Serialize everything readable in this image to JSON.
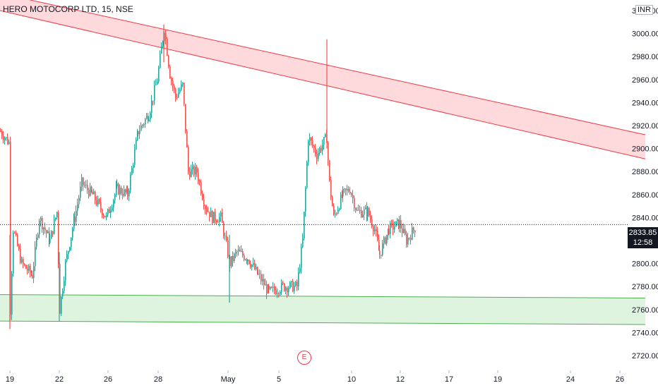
{
  "header": {
    "title": "HERO MOTOCORP LTD, 15, NSE",
    "currency": "INR"
  },
  "price_tag": {
    "price": "2833.85",
    "countdown": "12:58"
  },
  "earnings_marker": "E",
  "colors": {
    "up": "#26a69a",
    "down": "#ef5350",
    "resistance_fill": "#ffcdd2",
    "resistance_line": "#f23645",
    "support_fill": "#d4f0d4",
    "support_line": "#4caf50"
  },
  "chart_data": {
    "type": "candlestick",
    "title": "HERO MOTOCORP LTD, 15, NSE",
    "ylim": [
      2710,
      3040
    ],
    "y_ticks": [
      2720,
      2740,
      2760,
      2780,
      2800,
      2820,
      2840,
      2860,
      2880,
      2900,
      2920,
      2940,
      2960,
      2980,
      3000,
      3020
    ],
    "y_tick_labels": [
      "2720.00",
      "2740.00",
      "2760.00",
      "2780.00",
      "2800.00",
      "2820.00",
      "2840.00",
      "2860.00",
      "2880.00",
      "2900.00",
      "2920.00",
      "2940.00",
      "2960.00",
      "2980.00",
      "3000.00",
      "3020.00"
    ],
    "x_tick_labels": [
      "19",
      "22",
      "26",
      "28",
      "May",
      "5",
      "10",
      "12",
      "17",
      "19",
      "24",
      "26"
    ],
    "last_price": 2833.85,
    "price_path": [
      {
        "x": 0,
        "y": 2915
      },
      {
        "x": 12,
        "y": 2905
      },
      {
        "x": 14,
        "y": 2760
      },
      {
        "x": 18,
        "y": 2830
      },
      {
        "x": 30,
        "y": 2800
      },
      {
        "x": 45,
        "y": 2790
      },
      {
        "x": 55,
        "y": 2840
      },
      {
        "x": 70,
        "y": 2820
      },
      {
        "x": 80,
        "y": 2845
      },
      {
        "x": 84,
        "y": 2760
      },
      {
        "x": 92,
        "y": 2800
      },
      {
        "x": 105,
        "y": 2840
      },
      {
        "x": 115,
        "y": 2870
      },
      {
        "x": 130,
        "y": 2860
      },
      {
        "x": 150,
        "y": 2840
      },
      {
        "x": 165,
        "y": 2865
      },
      {
        "x": 180,
        "y": 2860
      },
      {
        "x": 195,
        "y": 2915
      },
      {
        "x": 210,
        "y": 2930
      },
      {
        "x": 222,
        "y": 2960
      },
      {
        "x": 232,
        "y": 3005
      },
      {
        "x": 240,
        "y": 2965
      },
      {
        "x": 248,
        "y": 2945
      },
      {
        "x": 258,
        "y": 2955
      },
      {
        "x": 266,
        "y": 2880
      },
      {
        "x": 278,
        "y": 2880
      },
      {
        "x": 290,
        "y": 2850
      },
      {
        "x": 300,
        "y": 2840
      },
      {
        "x": 312,
        "y": 2840
      },
      {
        "x": 325,
        "y": 2800
      },
      {
        "x": 335,
        "y": 2810
      },
      {
        "x": 350,
        "y": 2805
      },
      {
        "x": 365,
        "y": 2790
      },
      {
        "x": 380,
        "y": 2775
      },
      {
        "x": 400,
        "y": 2780
      },
      {
        "x": 420,
        "y": 2780
      },
      {
        "x": 428,
        "y": 2820
      },
      {
        "x": 436,
        "y": 2910
      },
      {
        "x": 448,
        "y": 2895
      },
      {
        "x": 462,
        "y": 2910
      },
      {
        "x": 466,
        "y": 2870
      },
      {
        "x": 472,
        "y": 2840
      },
      {
        "x": 485,
        "y": 2860
      },
      {
        "x": 495,
        "y": 2865
      },
      {
        "x": 505,
        "y": 2845
      },
      {
        "x": 520,
        "y": 2845
      },
      {
        "x": 530,
        "y": 2830
      },
      {
        "x": 537,
        "y": 2808
      },
      {
        "x": 550,
        "y": 2830
      },
      {
        "x": 565,
        "y": 2835
      },
      {
        "x": 575,
        "y": 2820
      },
      {
        "x": 588,
        "y": 2832
      }
    ],
    "resistance_zone": {
      "upper": [
        {
          "x": 0,
          "y": 3035
        },
        {
          "x": 914,
          "y": 2912
        }
      ],
      "lower": [
        {
          "x": 0,
          "y": 3020
        },
        {
          "x": 914,
          "y": 2891
        }
      ]
    },
    "support_zone": {
      "upper": [
        {
          "x": 0,
          "y": 2773
        },
        {
          "x": 914,
          "y": 2770
        }
      ],
      "lower": [
        {
          "x": 0,
          "y": 2750
        },
        {
          "x": 914,
          "y": 2747
        }
      ]
    },
    "grid": false
  }
}
